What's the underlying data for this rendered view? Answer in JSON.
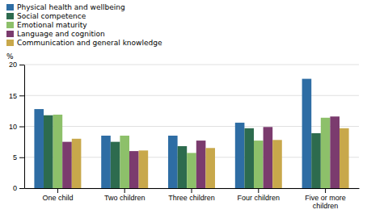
{
  "chart_data": {
    "type": "bar",
    "categories": [
      "One child",
      "Two children",
      "Three children",
      "Four children",
      "Five or more children"
    ],
    "series": [
      {
        "name": "Physical health and wellbeing",
        "color": "#2E6DA4",
        "values": [
          12.8,
          8.5,
          8.5,
          10.6,
          17.7
        ]
      },
      {
        "name": "Social competence",
        "color": "#2D6B4E",
        "values": [
          11.8,
          7.5,
          6.8,
          9.7,
          8.9
        ]
      },
      {
        "name": "Emotional maturity",
        "color": "#8DC06A",
        "values": [
          11.9,
          8.5,
          5.7,
          7.7,
          11.4
        ]
      },
      {
        "name": "Language and cognition",
        "color": "#7B3B6E",
        "values": [
          7.5,
          6.0,
          7.7,
          9.9,
          11.6
        ]
      },
      {
        "name": "Communication and general knowledge",
        "color": "#C8A84B",
        "values": [
          8.0,
          6.1,
          6.5,
          7.8,
          9.7
        ]
      }
    ],
    "ylabel": "%",
    "ylim": [
      0,
      20
    ],
    "yticks": [
      0,
      5,
      10,
      15,
      20
    ],
    "grid": true,
    "legend": "top-left"
  }
}
